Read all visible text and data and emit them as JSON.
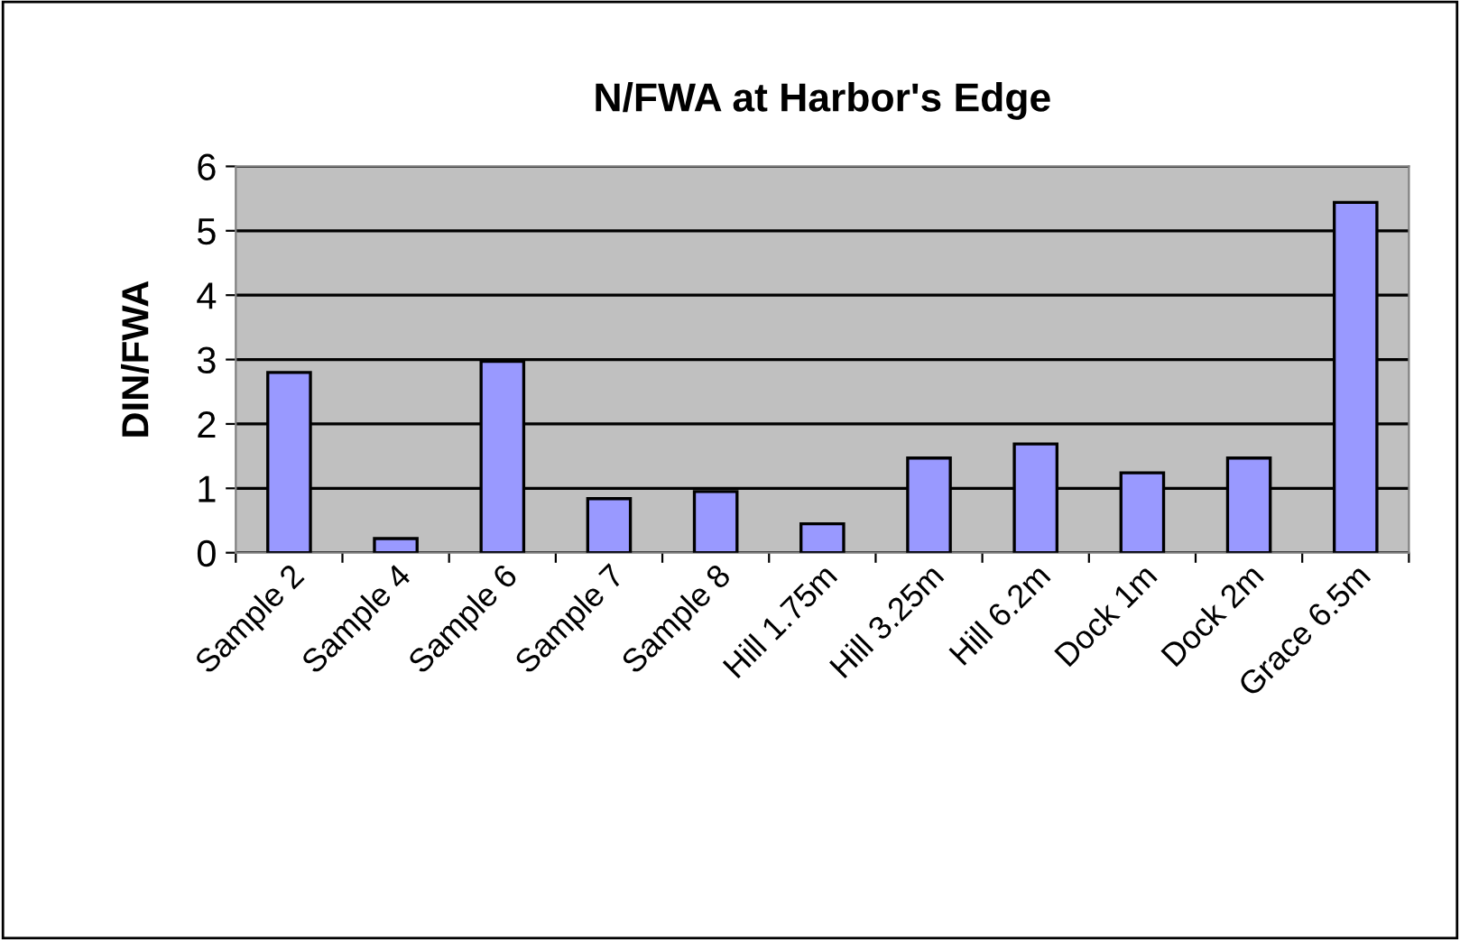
{
  "chart_data": {
    "type": "bar",
    "title": "N/FWA at Harbor's Edge",
    "ylabel": "DIN/FWA",
    "categories": [
      "Sample 2",
      "Sample 4",
      "Sample 6",
      "Sample 7",
      "Sample 8",
      "Hill 1.75m",
      "Hill 3.25m",
      "Hill 6.2m",
      "Dock 1m",
      "Dock 2m",
      "Grace 6.5m"
    ],
    "values": [
      2.8,
      0.22,
      2.97,
      0.84,
      0.95,
      0.45,
      1.47,
      1.69,
      1.24,
      1.47,
      5.44
    ],
    "color": "#9999ff",
    "ylim": [
      0,
      6
    ],
    "yticks": [
      0,
      1,
      2,
      3,
      4,
      5,
      6
    ],
    "grid": "y",
    "legend": false
  }
}
